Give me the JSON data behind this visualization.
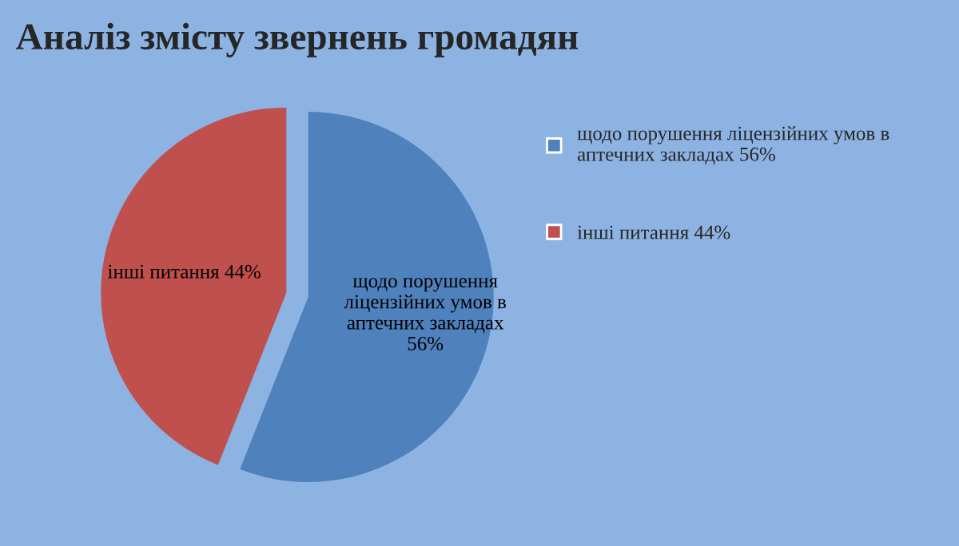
{
  "chart_data": {
    "type": "pie",
    "title": "Аналіз змісту звернень громадян",
    "categories": [
      "щодо порушення ліцензійних умов в аптечних закладах",
      "інші питання"
    ],
    "values": [
      56,
      44
    ],
    "value_labels": [
      "56%",
      "44%"
    ],
    "colors": [
      "#4f81bd",
      "#c0504d"
    ],
    "legend": "right"
  }
}
